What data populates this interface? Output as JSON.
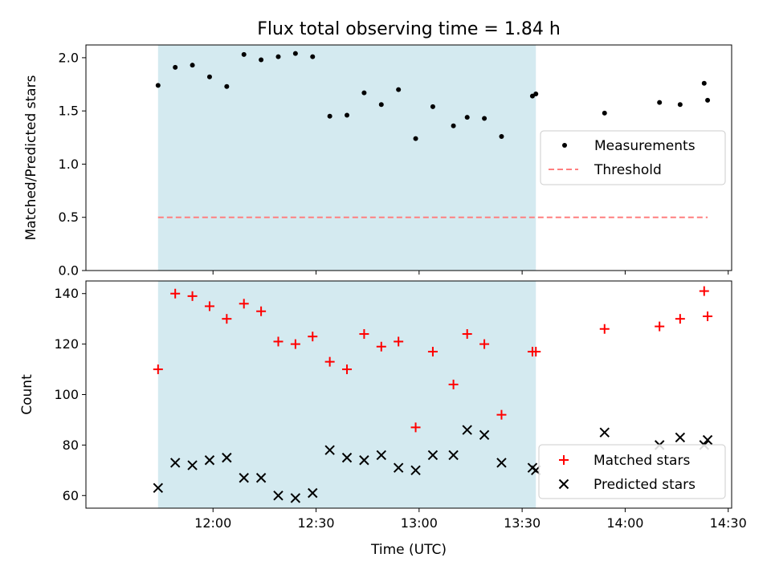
{
  "chart_data": [
    {
      "type": "scatter",
      "title": "Flux total observing time = 1.84 h",
      "ylabel": "Matched/Predicted stars",
      "ylim": [
        0,
        2.12
      ],
      "yticks": [
        "0.0",
        "0.5",
        "1.0",
        "1.5",
        "2.0"
      ],
      "xlim": [
        "11:23",
        "14:31"
      ],
      "shaded_interval": [
        "11:44",
        "13:34"
      ],
      "shade_color": "#d4eaf0",
      "legend": {
        "placement": "center-right"
      },
      "series": [
        {
          "name": "Measurements",
          "kind": "dots",
          "color": "#000000",
          "x": [
            "11:44",
            "11:49",
            "11:54",
            "11:59",
            "12:04",
            "12:09",
            "12:14",
            "12:19",
            "12:24",
            "12:29",
            "12:34",
            "12:39",
            "12:44",
            "12:49",
            "12:54",
            "12:59",
            "13:04",
            "13:10",
            "13:14",
            "13:19",
            "13:24",
            "13:33",
            "13:34",
            "13:54",
            "14:10",
            "14:16",
            "14:23",
            "14:24"
          ],
          "values": [
            1.74,
            1.91,
            1.93,
            1.82,
            1.73,
            2.03,
            1.98,
            2.01,
            2.04,
            2.01,
            1.45,
            1.46,
            1.67,
            1.56,
            1.7,
            1.24,
            1.54,
            1.36,
            1.44,
            1.43,
            1.26,
            1.64,
            1.66,
            1.48,
            1.58,
            1.56,
            1.76,
            1.6
          ]
        },
        {
          "name": "Threshold",
          "kind": "dashed-line",
          "color": "#ff7f7f",
          "x": [
            "11:44",
            "14:24"
          ],
          "values": [
            0.5,
            0.5
          ]
        }
      ]
    },
    {
      "type": "scatter",
      "xlabel": "Time (UTC)",
      "ylabel": "Count",
      "ylim": [
        55,
        145
      ],
      "yticks": [
        "60",
        "80",
        "100",
        "120",
        "140"
      ],
      "xlim": [
        "11:23",
        "14:31"
      ],
      "xticks": [
        "12:00",
        "12:30",
        "13:00",
        "13:30",
        "14:00",
        "14:30"
      ],
      "shaded_interval": [
        "11:44",
        "13:34"
      ],
      "shade_color": "#d4eaf0",
      "legend": {
        "placement": "lower-right"
      },
      "series": [
        {
          "name": "Matched stars",
          "marker": "plus",
          "color": "#ff0000",
          "x": [
            "11:44",
            "11:49",
            "11:54",
            "11:59",
            "12:04",
            "12:09",
            "12:14",
            "12:19",
            "12:24",
            "12:29",
            "12:34",
            "12:39",
            "12:44",
            "12:49",
            "12:54",
            "12:59",
            "13:04",
            "13:10",
            "13:14",
            "13:19",
            "13:24",
            "13:33",
            "13:34",
            "13:54",
            "14:10",
            "14:16",
            "14:23",
            "14:24"
          ],
          "values": [
            110,
            140,
            139,
            135,
            130,
            136,
            133,
            121,
            120,
            123,
            113,
            110,
            124,
            119,
            121,
            87,
            117,
            104,
            124,
            120,
            92,
            117,
            117,
            126,
            127,
            130,
            141,
            131
          ]
        },
        {
          "name": "Predicted stars",
          "marker": "x",
          "color": "#000000",
          "x": [
            "11:44",
            "11:49",
            "11:54",
            "11:59",
            "12:04",
            "12:09",
            "12:14",
            "12:19",
            "12:24",
            "12:29",
            "12:34",
            "12:39",
            "12:44",
            "12:49",
            "12:54",
            "12:59",
            "13:04",
            "13:10",
            "13:14",
            "13:19",
            "13:24",
            "13:33",
            "13:34",
            "13:54",
            "14:10",
            "14:16",
            "14:23",
            "14:24"
          ],
          "values": [
            63,
            73,
            72,
            74,
            75,
            67,
            67,
            60,
            59,
            61,
            78,
            75,
            74,
            76,
            71,
            70,
            76,
            76,
            86,
            84,
            73,
            71,
            70,
            85,
            80,
            83,
            80,
            82
          ]
        }
      ]
    }
  ]
}
